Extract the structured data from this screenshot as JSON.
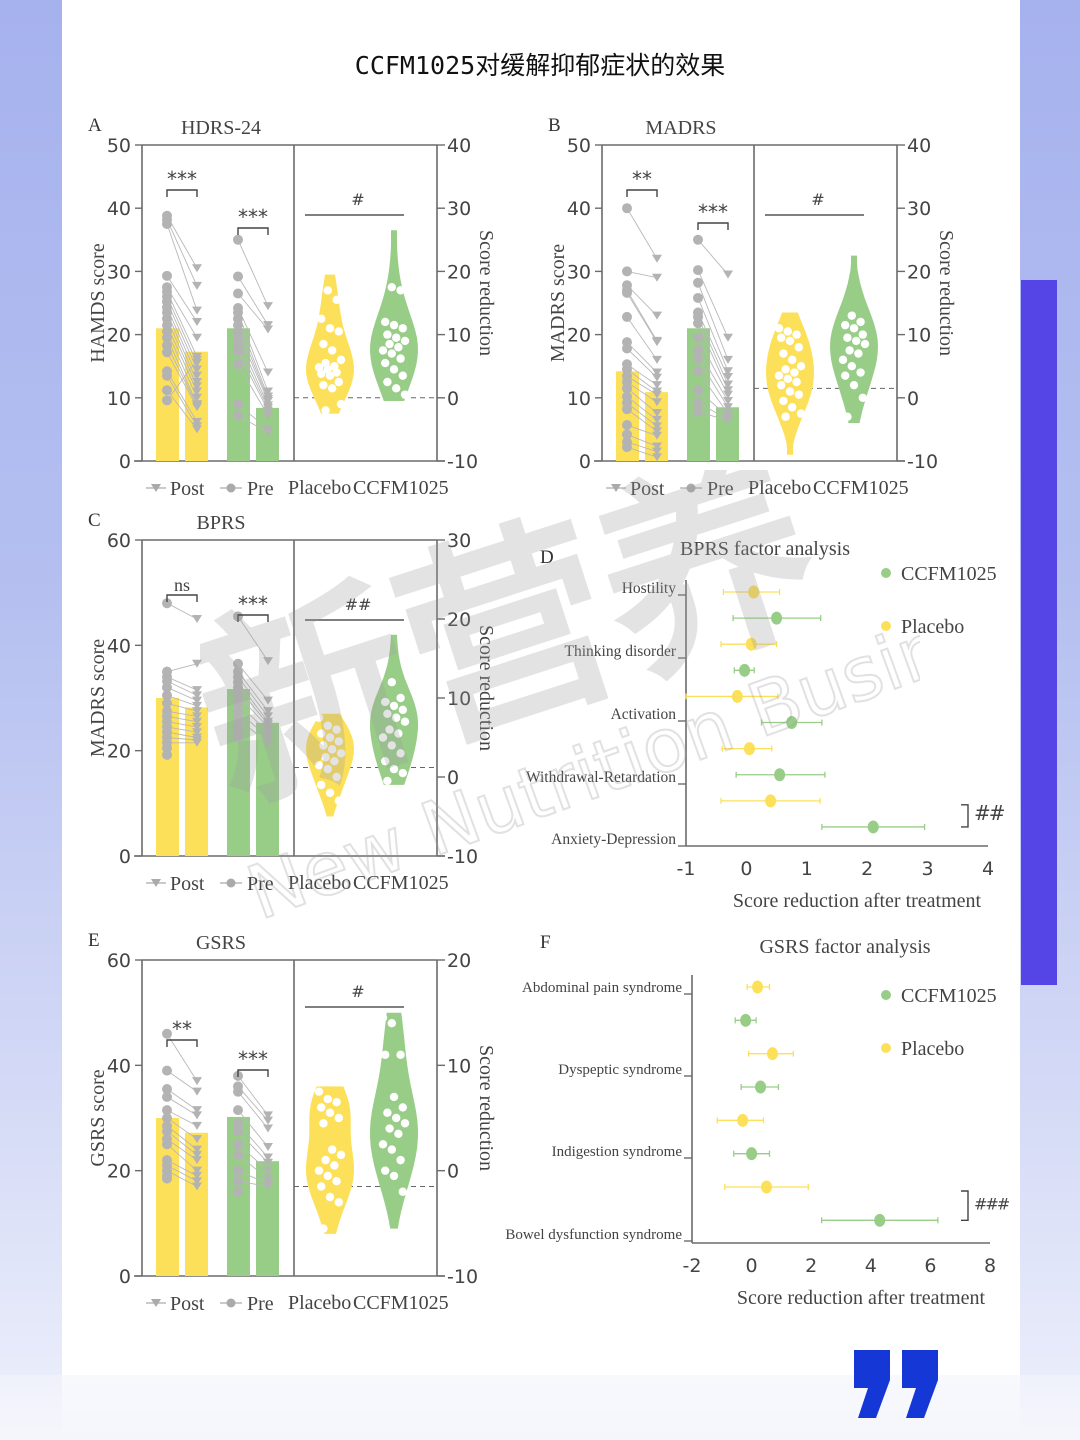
{
  "page": {
    "title": "CCFM1025对缓解抑郁症状的效果",
    "watermark_cn": "新营养",
    "watermark_en": "New Nutrition Business",
    "watermark_mark": "®"
  },
  "colors": {
    "placebo": "#fde05a",
    "ccfm": "#98cd88",
    "points": "#b3b3b3",
    "axis": "#6b6b6b",
    "accent": "#5544e6",
    "quote": "#1437d6"
  },
  "chart_data": [
    {
      "panel": "A",
      "type": "bar",
      "title": "HDRS-24",
      "ylabel": "HAMDS score",
      "ylim": [
        0,
        50
      ],
      "yticks": [
        0,
        10,
        20,
        30,
        40,
        50
      ],
      "y2label": "Score reduction",
      "y2lim": [
        -10,
        40
      ],
      "y2ticks": [
        -10,
        0,
        10,
        20,
        30,
        40
      ],
      "legend": {
        "post": "Post",
        "pre": "Pre"
      },
      "categories": [
        "Placebo",
        "CCFM1025"
      ],
      "bars": {
        "placebo_pre": 21,
        "placebo_post": 17.3,
        "ccfm_pre": 21,
        "ccfm_post": 8.4
      },
      "sig_pre_post": [
        "***",
        "***"
      ],
      "sig_between": "#",
      "placebo_pre": [
        38.8,
        38.2,
        37.5,
        29.3,
        27.5,
        26.8,
        26,
        25.2,
        24.3,
        23.5,
        22.5,
        21.5,
        20.5,
        19.5,
        18.3,
        17.2,
        14.2,
        13.5,
        11.2,
        9.6
      ],
      "placebo_post": [
        30.5,
        27.7,
        23.8,
        22,
        19.5,
        16.5,
        15.5,
        14.5,
        13.5,
        12.5,
        11.8,
        11,
        10,
        9,
        8.8,
        8.5,
        6.2,
        5.5,
        5,
        16
      ],
      "ccfm_pre": [
        35,
        29.2,
        26.5,
        24.2,
        23.5,
        22.5,
        21.5,
        20.5,
        19.5,
        18.3,
        17.3,
        15.3,
        9,
        7.2
      ],
      "ccfm_post": [
        24.5,
        21.5,
        20.8,
        14,
        11,
        10.2,
        9.8,
        9.5,
        8.8,
        8.4,
        8,
        7.2,
        5,
        4.5
      ],
      "violin_placebo": [
        19,
        17,
        15.5,
        12.5,
        11,
        10.5,
        8.5,
        7.5,
        6,
        5.5,
        5,
        4.8,
        4.5,
        4,
        3.8,
        3.5,
        2.5,
        2,
        1.5,
        -1,
        -2
      ],
      "violin_ccfm": [
        26,
        17.5,
        17,
        12,
        11.5,
        11,
        10,
        9.5,
        9,
        8.5,
        8,
        7.5,
        7,
        6.2,
        5.5,
        4.5,
        3.5,
        2.5,
        1.5,
        0.5
      ],
      "violin_placebo_range": [
        -2.5,
        19.5
      ],
      "violin_ccfm_range": [
        -0.5,
        26.5
      ],
      "dashed_ref": 0
    },
    {
      "panel": "B",
      "type": "bar",
      "title": "MADRS",
      "ylabel": "MADRS score",
      "ylim": [
        0,
        50
      ],
      "yticks": [
        0,
        10,
        20,
        30,
        40,
        50
      ],
      "y2label": "Score reduction",
      "y2lim": [
        -10,
        40
      ],
      "y2ticks": [
        -10,
        0,
        10,
        20,
        30,
        40
      ],
      "legend": {
        "post": "Post",
        "pre": "Pre"
      },
      "categories": [
        "Placebo",
        "CCFM1025"
      ],
      "bars": {
        "placebo_pre": 14.2,
        "placebo_post": 10.9,
        "ccfm_pre": 21,
        "ccfm_post": 8.5
      },
      "sig_pre_post": [
        "**",
        "***"
      ],
      "sig_between": "#",
      "placebo_pre": [
        40,
        30,
        27.8,
        27,
        26.6,
        22.8,
        18.8,
        17.8,
        15.3,
        14.5,
        13.4,
        12.5,
        11.5,
        10.2,
        9.2,
        8.2,
        5.7,
        4.2,
        3,
        2.2
      ],
      "placebo_post": [
        32,
        29,
        23,
        19,
        18.8,
        16,
        14,
        13.2,
        12,
        11,
        10.5,
        9.3,
        7.6,
        6.5,
        5.5,
        4.7,
        4,
        2.3,
        1.5,
        0.6
      ],
      "ccfm_pre": [
        35,
        30.2,
        28.2,
        25.8,
        23.5,
        22.8,
        21.8,
        19.5,
        17.5,
        16.2,
        14.2,
        11.2,
        9.2,
        7.8
      ],
      "ccfm_post": [
        29.5,
        19.5,
        16,
        14.2,
        13.3,
        12.1,
        11.2,
        10.5,
        9.5,
        8.5,
        7.5,
        7,
        6.6,
        6.4
      ],
      "violin_placebo": [
        11,
        10.5,
        10,
        9.5,
        9,
        8,
        7,
        6,
        5,
        4.5,
        4,
        3.5,
        3,
        2.5,
        2,
        1,
        0.5,
        -0.5,
        -1.5,
        -2.5,
        -3
      ],
      "violin_ccfm": [
        18,
        13,
        12,
        11.5,
        11,
        10,
        9.5,
        9,
        8.5,
        7.5,
        7,
        6,
        5,
        4,
        3.5,
        2,
        0,
        -3
      ],
      "violin_placebo_range": [
        -9,
        13.5
      ],
      "violin_ccfm_range": [
        -4,
        22.5
      ],
      "dashed_ref": 1.5
    },
    {
      "panel": "C",
      "type": "bar",
      "title": "BPRS",
      "ylabel": "MADRS score",
      "ylim": [
        0,
        60
      ],
      "yticks": [
        0,
        20,
        40,
        60
      ],
      "y2label": "Score reduction",
      "y2lim": [
        -10,
        30
      ],
      "y2ticks": [
        -10,
        0,
        10,
        20,
        30
      ],
      "legend": {
        "post": "Post",
        "pre": "Pre"
      },
      "categories": [
        "Placebo",
        "CCFM1025"
      ],
      "bars": {
        "placebo_pre": 30,
        "placebo_post": 28.2,
        "ccfm_pre": 31.7,
        "ccfm_post": 25.3
      },
      "sig_pre_post": [
        "ns",
        "***"
      ],
      "sig_between": "##",
      "placebo_pre": [
        48,
        35,
        34,
        33.2,
        32,
        30.5,
        29,
        27.5,
        26.5,
        25.5,
        24.5,
        23.5,
        22.5,
        21.5,
        20.5,
        19.2
      ],
      "placebo_post": [
        45,
        36.5,
        31.5,
        30.5,
        29.5,
        28.5,
        27.5,
        26.5,
        25.5,
        24.5,
        23.5,
        22.5,
        22,
        21.5
      ],
      "ccfm_pre": [
        45.5,
        36.5,
        35,
        34,
        33,
        32,
        30.5,
        29,
        27.5,
        26,
        24.5,
        23.5,
        22.5
      ],
      "ccfm_post": [
        37,
        29.5,
        27.5,
        26.5,
        25.5,
        25,
        24.5,
        23.5,
        22.5,
        21.5
      ],
      "violin_placebo": [
        7.5,
        6.5,
        6,
        5.5,
        5,
        4.5,
        4,
        3.5,
        3,
        2.5,
        2,
        1.5,
        1,
        0,
        -1,
        -2,
        -3
      ],
      "violin_ccfm": [
        17.5,
        12,
        10,
        9.5,
        9,
        8.5,
        8,
        7.5,
        7,
        6,
        5.5,
        5,
        4,
        3,
        2,
        1,
        0.5,
        -0.5
      ],
      "violin_placebo_range": [
        -5,
        8
      ],
      "violin_ccfm_range": [
        -1,
        18
      ],
      "dashed_ref": 1.2
    },
    {
      "panel": "E",
      "type": "bar",
      "title": "GSRS",
      "ylabel": "GSRS score",
      "ylim": [
        0,
        60
      ],
      "yticks": [
        0,
        20,
        40,
        60
      ],
      "y2label": "Score reduction",
      "y2lim": [
        -10,
        20
      ],
      "y2ticks": [
        -10,
        0,
        10,
        20
      ],
      "legend": {
        "post": "Post",
        "pre": "Pre"
      },
      "categories": [
        "Placebo",
        "CCFM1025"
      ],
      "bars": {
        "placebo_pre": 30,
        "placebo_post": 27.2,
        "ccfm_pre": 30.2,
        "ccfm_post": 21.8
      },
      "sig_pre_post": [
        "**",
        "***"
      ],
      "sig_between": "#",
      "placebo_pre": [
        46,
        39,
        35.5,
        34,
        31.5,
        30,
        28.5,
        27.5,
        26,
        25,
        22,
        21,
        20,
        19,
        18.5
      ],
      "placebo_post": [
        37,
        35,
        31.5,
        30.5,
        28.5,
        26,
        24,
        23,
        22,
        20,
        19,
        18,
        17
      ],
      "ccfm_pre": [
        38,
        36,
        35,
        31.5,
        29,
        27.5,
        25,
        23,
        20,
        18,
        16
      ],
      "ccfm_post": [
        30.5,
        29.5,
        28,
        24.5,
        22.5,
        21.5,
        20,
        18.5,
        17.5,
        17
      ],
      "violin_placebo": [
        7.5,
        6.8,
        6.5,
        6,
        5.5,
        5,
        4.5,
        2,
        1.5,
        1,
        0.5,
        0,
        -0.5,
        -1,
        -1.5,
        -2.5,
        -3,
        -5.5
      ],
      "violin_ccfm": [
        14.5,
        14,
        11,
        11,
        7,
        6,
        5.5,
        5,
        4.5,
        4,
        3.5,
        2.5,
        2,
        1,
        0,
        -0.5,
        -2
      ],
      "violin_placebo_range": [
        -6,
        8
      ],
      "violin_ccfm_range": [
        -5.5,
        15
      ],
      "dashed_ref": -1.5
    },
    {
      "panel": "D",
      "type": "scatter",
      "title": "BPRS factor analysis",
      "xlabel": "Score reduction after treatment",
      "xlim": [
        -1,
        4
      ],
      "xticks": [
        -1,
        0,
        1,
        2,
        3,
        4
      ],
      "categories": [
        "Hostility",
        "Thinking disorder",
        "Activation",
        "Withdrawal-Retardation",
        "Anxiety-Depression"
      ],
      "legend": [
        "CCFM1025",
        "Placebo"
      ],
      "legend_position": "top-right",
      "series": [
        {
          "name": "Placebo",
          "mean": [
            0.12,
            0.08,
            -0.15,
            0.05,
            0.4
          ],
          "lo": [
            -0.38,
            -0.42,
            -1,
            -0.4,
            -0.42
          ],
          "hi": [
            0.55,
            0.5,
            0.52,
            0.42,
            1.22
          ]
        },
        {
          "name": "CCFM1025",
          "mean": [
            0.5,
            -0.03,
            0.75,
            0.55,
            2.1
          ],
          "lo": [
            -0.22,
            -0.2,
            0.25,
            -0.17,
            1.25
          ],
          "hi": [
            1.23,
            0.13,
            1.25,
            1.3,
            2.95
          ]
        }
      ],
      "significance": "##",
      "significance_row": "Anxiety-Depression"
    },
    {
      "panel": "F",
      "type": "scatter",
      "title": "GSRS factor analysis",
      "xlabel": "Score reduction after treatment",
      "xlim": [
        -2,
        8
      ],
      "xticks": [
        -2,
        0,
        2,
        4,
        6,
        8
      ],
      "categories": [
        "Abdominal pain syndrome",
        "Dyspeptic syndrome",
        "Indigestion syndrome",
        "Bowel dysfunction syndrome"
      ],
      "legend": [
        "CCFM1025",
        "Placebo"
      ],
      "legend_position": "top-right",
      "series": [
        {
          "name": "Placebo",
          "mean": [
            0.2,
            0.7,
            -0.3,
            0.5
          ],
          "lo": [
            -0.15,
            -0.1,
            -1.15,
            -0.9
          ],
          "hi": [
            0.6,
            1.4,
            0.4,
            1.9
          ]
        },
        {
          "name": "CCFM1025",
          "mean": [
            -0.2,
            0.3,
            0,
            4.3
          ],
          "lo": [
            -0.55,
            -0.35,
            -0.6,
            2.35
          ],
          "hi": [
            0.15,
            0.9,
            0.6,
            6.25
          ]
        }
      ],
      "significance": "###",
      "significance_row": "Bowel dysfunction syndrome"
    }
  ]
}
